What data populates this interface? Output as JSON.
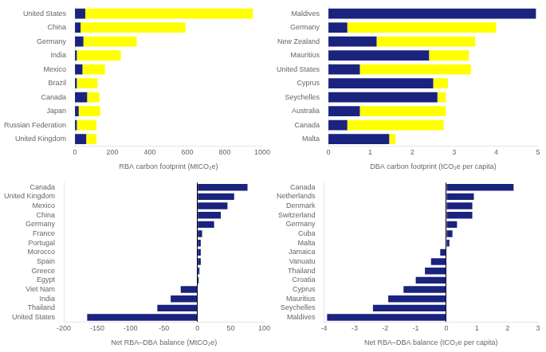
{
  "chart_data": [
    {
      "type": "bar",
      "orientation": "horizontal",
      "stacked": true,
      "grid": false,
      "categories": [
        "United States",
        "China",
        "Germany",
        "India",
        "Mexico",
        "Brazil",
        "Canada",
        "Japan",
        "Russian Federation",
        "United Kingdom"
      ],
      "series": [
        {
          "color": "#1a237e",
          "values": [
            55,
            30,
            45,
            10,
            40,
            10,
            65,
            20,
            10,
            60
          ]
        },
        {
          "color": "#ffff00",
          "values": [
            895,
            560,
            285,
            235,
            120,
            110,
            65,
            115,
            105,
            55
          ]
        }
      ],
      "xlabel": "RBA carbon footprint (MtCO₂e)",
      "xlim": [
        0,
        1000
      ],
      "xticks": [
        0,
        200,
        400,
        600,
        800,
        1000
      ]
    },
    {
      "type": "bar",
      "orientation": "horizontal",
      "stacked": true,
      "grid": false,
      "categories": [
        "Maldives",
        "Germany",
        "New Zealand",
        "Mauritius",
        "United States",
        "Cyprus",
        "Seychelles",
        "Australia",
        "Canada",
        "Malta"
      ],
      "series": [
        {
          "color": "#1a237e",
          "values": [
            4.95,
            0.45,
            1.15,
            2.4,
            0.75,
            2.5,
            2.6,
            0.75,
            0.45,
            1.45
          ]
        },
        {
          "color": "#ffff00",
          "values": [
            0.0,
            3.55,
            2.35,
            0.95,
            2.65,
            0.35,
            0.2,
            2.05,
            2.3,
            0.15
          ]
        }
      ],
      "xlabel": "DBA carbon footprint (tCO₂e per capita)",
      "xlim": [
        0,
        5
      ],
      "xticks": [
        0,
        1,
        2,
        3,
        4,
        5
      ]
    },
    {
      "type": "bar",
      "orientation": "horizontal",
      "grid": false,
      "categories": [
        "Canada",
        "United Kingdom",
        "Mexico",
        "China",
        "Germany",
        "France",
        "Portugal",
        "Morocco",
        "Spain",
        "Greece",
        "Egypt",
        "Viet Nam",
        "India",
        "Thailand",
        "United States"
      ],
      "series": [
        {
          "color": "#1a237e",
          "values": [
            75,
            55,
            45,
            35,
            25,
            7,
            5,
            5,
            5,
            3,
            2,
            -25,
            -40,
            -60,
            -165
          ]
        }
      ],
      "xlabel": "Net RBA–DBA balance (MtCO₂e)",
      "xlim": [
        -200,
        100
      ],
      "xticks": [
        -200,
        -150,
        -100,
        -50,
        0,
        50,
        100
      ]
    },
    {
      "type": "bar",
      "orientation": "horizontal",
      "grid": false,
      "categories": [
        "Canada",
        "Netherlands",
        "Denmark",
        "Switzerland",
        "Germany",
        "Cuba",
        "Malta",
        "Jamaica",
        "Vanuatu",
        "Thailand",
        "Croatia",
        "Cyprus",
        "Mauritius",
        "Seychelles",
        "Maldives"
      ],
      "series": [
        {
          "color": "#1a237e",
          "values": [
            2.2,
            0.9,
            0.85,
            0.85,
            0.35,
            0.2,
            0.1,
            -0.2,
            -0.5,
            -0.7,
            -1.0,
            -1.4,
            -1.9,
            -2.4,
            -3.9
          ]
        }
      ],
      "xlabel": "Net RBA–DBA balance (tCO₂e per capita)",
      "xlim": [
        -4,
        3
      ],
      "xticks": [
        -4,
        -3,
        -2,
        -1,
        0,
        1,
        2,
        3
      ]
    }
  ]
}
